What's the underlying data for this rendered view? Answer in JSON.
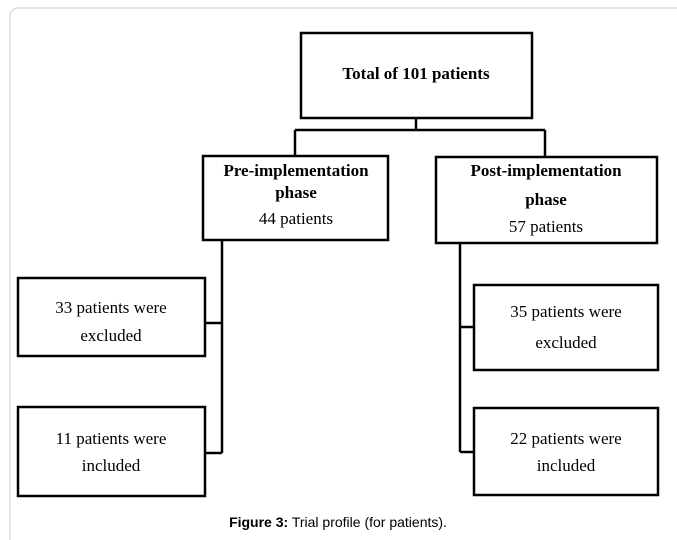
{
  "nodes": [
    {
      "lines": [
        "Total of 101 patients"
      ]
    },
    {
      "lines": [
        "Pre-implementation",
        "phase",
        "44 patients"
      ]
    },
    {
      "lines": [
        "Post-implementation",
        "phase",
        "57 patients"
      ]
    },
    {
      "lines": [
        "33 patients were",
        "excluded"
      ]
    },
    {
      "lines": [
        "11 patients were",
        "included"
      ]
    },
    {
      "lines": [
        "35 patients were",
        "excluded"
      ]
    },
    {
      "lines": [
        "22 patients were",
        "included"
      ]
    }
  ],
  "caption": {
    "label": "Figure 3:",
    "text": "Trial profile (for patients)."
  }
}
